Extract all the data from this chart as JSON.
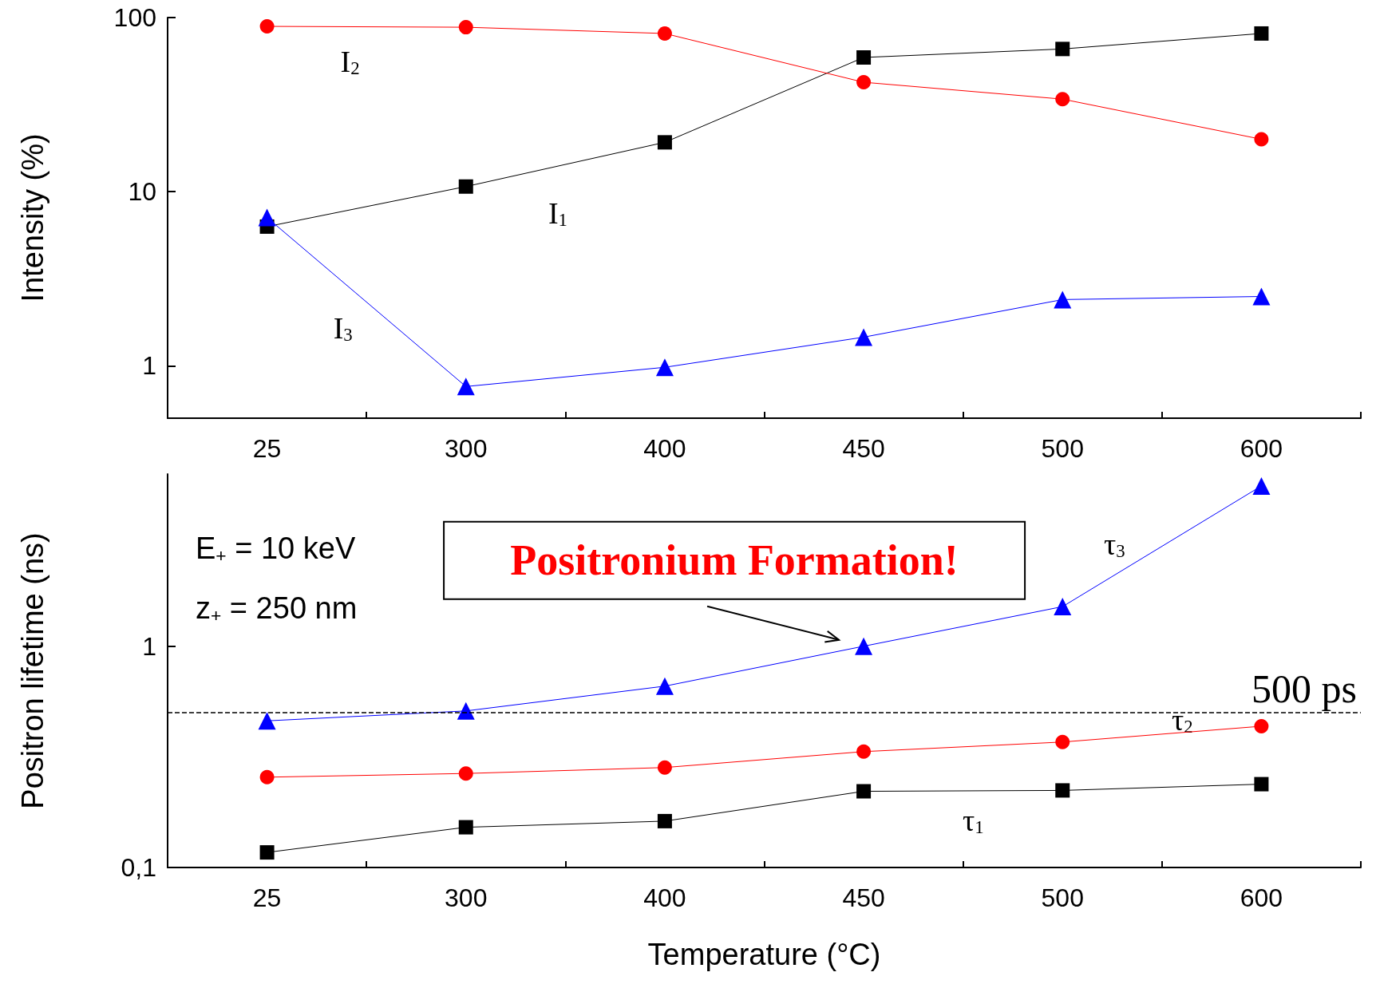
{
  "chart_data": [
    {
      "type": "line",
      "ylabel": "Intensity (%)",
      "categories": [
        "25",
        "300",
        "400",
        "450",
        "500",
        "600"
      ],
      "log": "y",
      "ylim": [
        0.5,
        100
      ],
      "yticks": [
        1,
        10,
        100
      ],
      "series": [
        {
          "name": "I$_{1}$",
          "color": "#000000",
          "marker": "square",
          "values": [
            6.3,
            10.7,
            19.2,
            59,
            66,
            81
          ]
        },
        {
          "name": "I$_{2}$",
          "color": "#ff0000",
          "marker": "circle",
          "values": [
            89,
            88,
            81,
            42.5,
            34,
            20
          ]
        },
        {
          "name": "I$_{3}$",
          "color": "#0000ff",
          "marker": "triangle",
          "values": [
            7.1,
            0.76,
            0.98,
            1.46,
            2.4,
            2.5
          ]
        }
      ]
    },
    {
      "type": "line",
      "xlabel": "Temperature (°C)",
      "ylabel": "Positron lifetime (ns)",
      "categories": [
        "25",
        "300",
        "400",
        "450",
        "500",
        "600"
      ],
      "log": "y",
      "ylim": [
        0.1,
        6
      ],
      "yticks": [
        {
          "value": 0.1,
          "label": "0,1"
        },
        1
      ],
      "series": [
        {
          "name": "τ$_{1}$",
          "color": "#000000",
          "marker": "square",
          "values": [
            0.117,
            0.152,
            0.162,
            0.221,
            0.223,
            0.238
          ]
        },
        {
          "name": "τ$_{2}$",
          "color": "#ff0000",
          "marker": "circle",
          "values": [
            0.256,
            0.266,
            0.283,
            0.334,
            0.369,
            0.435
          ]
        },
        {
          "name": "τ$_{3}$",
          "color": "#0000ff",
          "marker": "triangle",
          "values": [
            0.46,
            0.51,
            0.66,
            1.0,
            1.51,
            5.3
          ]
        }
      ],
      "ref_lines": [
        {
          "axis": "y",
          "value": 0.5,
          "label": "500 ps",
          "color": "#000000",
          "line_style": "dashed"
        }
      ],
      "annotations": [
        "E$_{+}$ = 10 keV",
        "z$_{+}$ = 250 nm",
        {
          "text": "Positronium Formation!",
          "x": "450",
          "y": 1
        }
      ]
    }
  ]
}
